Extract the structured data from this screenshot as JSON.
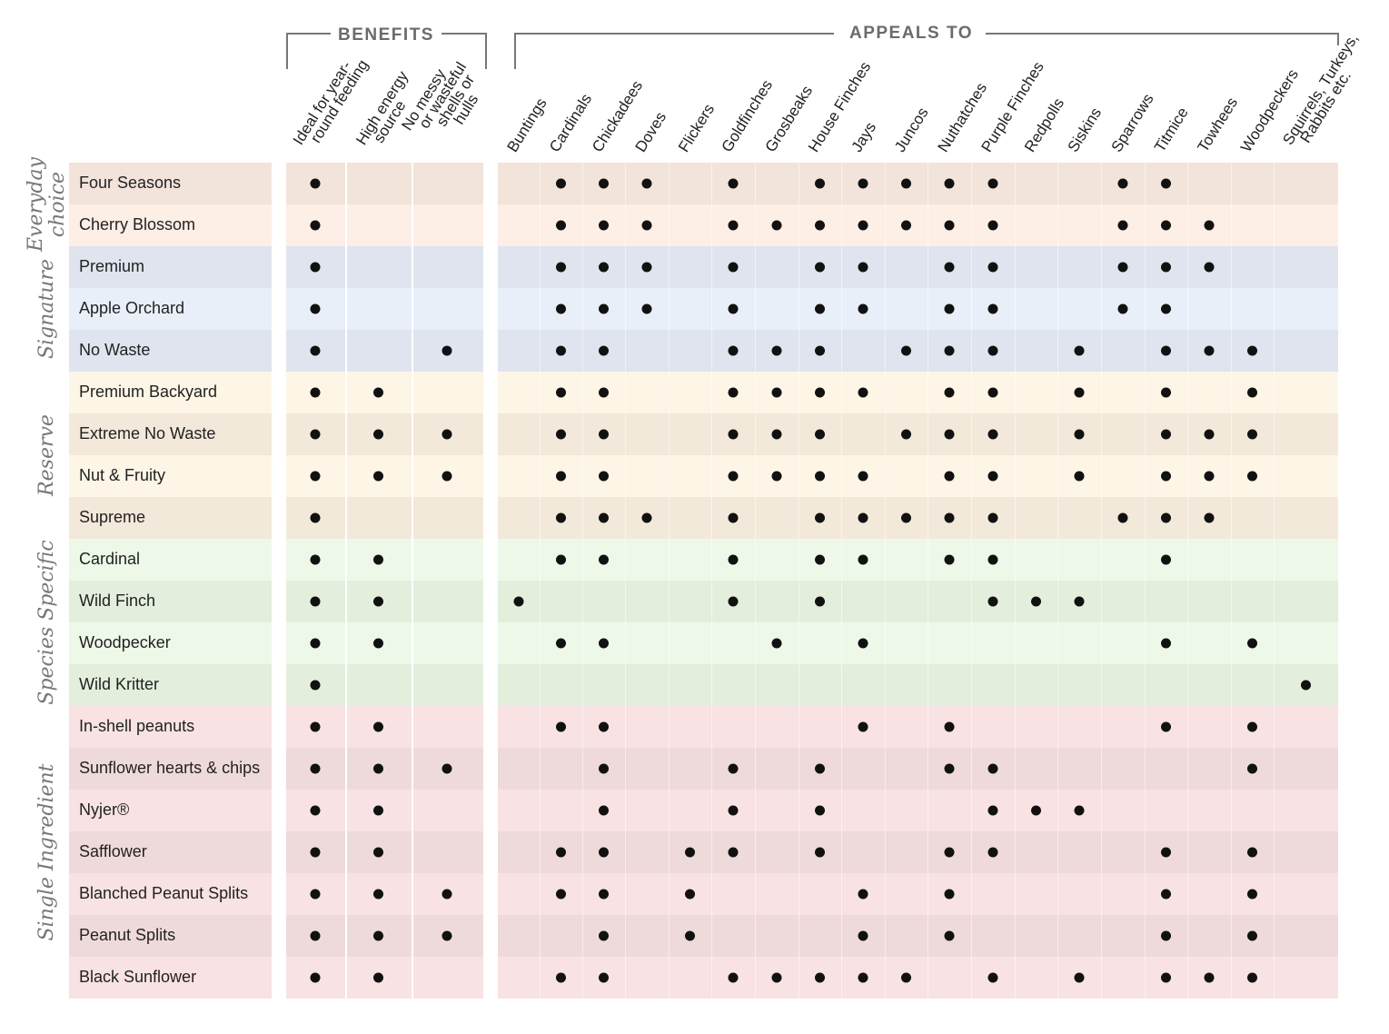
{
  "header": {
    "benefits_title": "BENEFITS",
    "appeals_title": "APPEALS TO",
    "benefits_columns": [
      [
        "Ideal for year-",
        "round feeding"
      ],
      [
        "High energy",
        "source"
      ],
      [
        "No messy",
        "or wasteful",
        "shells or",
        "hulls"
      ]
    ],
    "appeals_columns": [
      [
        "Buntings"
      ],
      [
        "Cardinals"
      ],
      [
        "Chickadees"
      ],
      [
        "Doves"
      ],
      [
        "Flickers"
      ],
      [
        "Goldfinches"
      ],
      [
        "Grosbeaks"
      ],
      [
        "House Finches"
      ],
      [
        "Jays"
      ],
      [
        "Juncos"
      ],
      [
        "Nuthatches"
      ],
      [
        "Purple Finches"
      ],
      [
        "Redpolls"
      ],
      [
        "Siskins"
      ],
      [
        "Sparrows"
      ],
      [
        "Titmice"
      ],
      [
        "Towhees"
      ],
      [
        "Woodpeckers"
      ],
      [
        "Squirrels, Turkeys,",
        "Rabbits etc."
      ]
    ]
  },
  "groups": [
    {
      "label": [
        "Everyday",
        "choice"
      ],
      "colors": [
        "#f2e4da",
        "#fdeee6"
      ],
      "rows": [
        {
          "name": "Four Seasons",
          "benefits": [
            true,
            false,
            false
          ],
          "appeals": [
            false,
            true,
            true,
            true,
            false,
            true,
            false,
            true,
            true,
            true,
            true,
            true,
            false,
            false,
            true,
            true,
            false,
            false,
            false
          ]
        },
        {
          "name": "Cherry Blossom",
          "benefits": [
            true,
            false,
            false
          ],
          "appeals": [
            false,
            true,
            true,
            true,
            false,
            true,
            true,
            true,
            true,
            true,
            true,
            true,
            false,
            false,
            true,
            true,
            true,
            false,
            false
          ]
        }
      ]
    },
    {
      "label": [
        "Signature"
      ],
      "colors": [
        "#dfe4ef",
        "#e9eff9"
      ],
      "rows": [
        {
          "name": "Premium",
          "benefits": [
            true,
            false,
            false
          ],
          "appeals": [
            false,
            true,
            true,
            true,
            false,
            true,
            false,
            true,
            true,
            false,
            true,
            true,
            false,
            false,
            true,
            true,
            true,
            false,
            false
          ]
        },
        {
          "name": "Apple Orchard",
          "benefits": [
            true,
            false,
            false
          ],
          "appeals": [
            false,
            true,
            true,
            true,
            false,
            true,
            false,
            true,
            true,
            false,
            true,
            true,
            false,
            false,
            true,
            true,
            false,
            false,
            false
          ]
        },
        {
          "name": "No Waste",
          "benefits": [
            true,
            false,
            true
          ],
          "appeals": [
            false,
            true,
            true,
            false,
            false,
            true,
            true,
            true,
            false,
            true,
            true,
            true,
            false,
            true,
            false,
            true,
            true,
            true,
            false
          ]
        }
      ]
    },
    {
      "label": [
        "Reserve"
      ],
      "colors": [
        "#fdf5e6",
        "#f3e9da"
      ],
      "rows": [
        {
          "name": "Premium Backyard",
          "benefits": [
            true,
            true,
            false
          ],
          "appeals": [
            false,
            true,
            true,
            false,
            false,
            true,
            true,
            true,
            true,
            false,
            true,
            true,
            false,
            true,
            false,
            true,
            false,
            true,
            false
          ]
        },
        {
          "name": "Extreme No Waste",
          "benefits": [
            true,
            true,
            true
          ],
          "appeals": [
            false,
            true,
            true,
            false,
            false,
            true,
            true,
            true,
            false,
            true,
            true,
            true,
            false,
            true,
            false,
            true,
            true,
            true,
            false
          ]
        },
        {
          "name": "Nut & Fruity",
          "benefits": [
            true,
            true,
            true
          ],
          "appeals": [
            false,
            true,
            true,
            false,
            false,
            true,
            true,
            true,
            true,
            false,
            true,
            true,
            false,
            true,
            false,
            true,
            true,
            true,
            false
          ]
        },
        {
          "name": "Supreme",
          "benefits": [
            true,
            false,
            false
          ],
          "appeals": [
            false,
            true,
            true,
            true,
            false,
            true,
            false,
            true,
            true,
            true,
            true,
            true,
            false,
            false,
            true,
            true,
            true,
            false,
            false
          ]
        }
      ]
    },
    {
      "label": [
        "Species Specific"
      ],
      "colors": [
        "#eef8e8",
        "#e3efdc"
      ],
      "rows": [
        {
          "name": "Cardinal",
          "benefits": [
            true,
            true,
            false
          ],
          "appeals": [
            false,
            true,
            true,
            false,
            false,
            true,
            false,
            true,
            true,
            false,
            true,
            true,
            false,
            false,
            false,
            true,
            false,
            false,
            false
          ]
        },
        {
          "name": "Wild Finch",
          "benefits": [
            true,
            true,
            false
          ],
          "appeals": [
            true,
            false,
            false,
            false,
            false,
            true,
            false,
            true,
            false,
            false,
            false,
            true,
            true,
            true,
            false,
            false,
            false,
            false,
            false
          ]
        },
        {
          "name": "Woodpecker",
          "benefits": [
            true,
            true,
            false
          ],
          "appeals": [
            false,
            true,
            true,
            false,
            false,
            false,
            true,
            false,
            true,
            false,
            false,
            false,
            false,
            false,
            false,
            true,
            false,
            true,
            false
          ]
        },
        {
          "name": "Wild Kritter",
          "benefits": [
            true,
            false,
            false
          ],
          "appeals": [
            false,
            false,
            false,
            false,
            false,
            false,
            false,
            false,
            false,
            false,
            false,
            false,
            false,
            false,
            false,
            false,
            false,
            false,
            true
          ]
        }
      ]
    },
    {
      "label": [
        "Single Ingredient"
      ],
      "colors": [
        "#f8e2e3",
        "#efdadb"
      ],
      "rows": [
        {
          "name": "In-shell peanuts",
          "benefits": [
            true,
            true,
            false
          ],
          "appeals": [
            false,
            true,
            true,
            false,
            false,
            false,
            false,
            false,
            true,
            false,
            true,
            false,
            false,
            false,
            false,
            true,
            false,
            true,
            false
          ]
        },
        {
          "name": "Sunflower hearts & chips",
          "benefits": [
            true,
            true,
            true
          ],
          "appeals": [
            false,
            false,
            true,
            false,
            false,
            true,
            false,
            true,
            false,
            false,
            true,
            true,
            false,
            false,
            false,
            false,
            false,
            true,
            false
          ]
        },
        {
          "name": "Nyjer®",
          "benefits": [
            true,
            true,
            false
          ],
          "appeals": [
            false,
            false,
            true,
            false,
            false,
            true,
            false,
            true,
            false,
            false,
            false,
            true,
            true,
            true,
            false,
            false,
            false,
            false,
            false
          ]
        },
        {
          "name": "Safflower",
          "benefits": [
            true,
            true,
            false
          ],
          "appeals": [
            false,
            true,
            true,
            false,
            true,
            true,
            false,
            true,
            false,
            false,
            true,
            true,
            false,
            false,
            false,
            true,
            false,
            true,
            false
          ]
        },
        {
          "name": "Blanched Peanut Splits",
          "benefits": [
            true,
            true,
            true
          ],
          "appeals": [
            false,
            true,
            true,
            false,
            true,
            false,
            false,
            false,
            true,
            false,
            true,
            false,
            false,
            false,
            false,
            true,
            false,
            true,
            false
          ]
        },
        {
          "name": "Peanut Splits",
          "benefits": [
            true,
            true,
            true
          ],
          "appeals": [
            false,
            false,
            true,
            false,
            true,
            false,
            false,
            false,
            true,
            false,
            true,
            false,
            false,
            false,
            false,
            true,
            false,
            true,
            false
          ]
        },
        {
          "name": "Black Sunflower",
          "benefits": [
            true,
            true,
            false
          ],
          "appeals": [
            false,
            true,
            true,
            false,
            false,
            true,
            true,
            true,
            true,
            true,
            false,
            true,
            false,
            true,
            false,
            true,
            true,
            true,
            false
          ]
        }
      ]
    }
  ]
}
